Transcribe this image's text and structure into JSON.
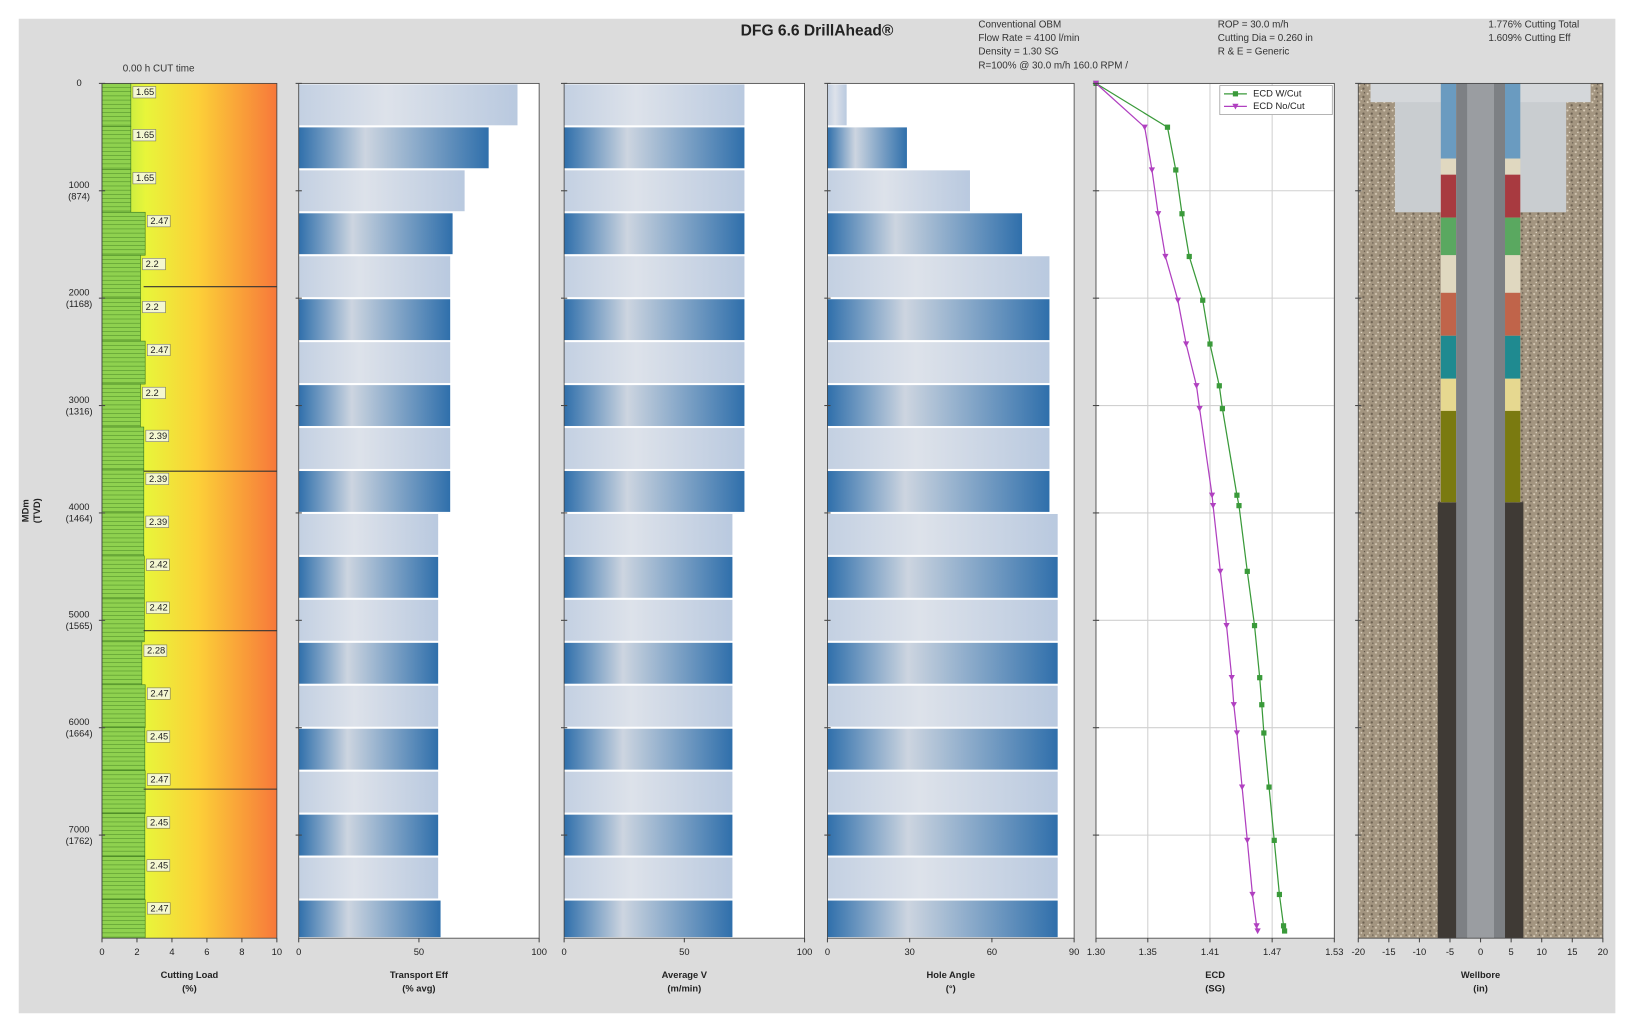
{
  "header": {
    "title": "DFG 6.6 DrillAhead®",
    "cut_time": "0.00 h CUT time",
    "info_mud": [
      "Conventional OBM",
      "Flow Rate = 4100 l/min",
      "Density = 1.30 SG",
      "R=100% @ 30.0 m/h 160.0 RPM /"
    ],
    "info_cutting": [
      "ROP = 30.0 m/h",
      "Cutting Dia = 0.260 in",
      "R & E = Generic"
    ],
    "info_total": [
      "1.776% Cutting Total",
      "1.609% Cutting Eff"
    ]
  },
  "depth_axis": {
    "label": "MDm",
    "sublabel": "(TVD)",
    "ylim": [
      0,
      7960
    ],
    "yticks": [
      0,
      1000,
      2000,
      3000,
      4000,
      5000,
      6000,
      7000
    ],
    "ytick_sublabels": [
      null,
      "(874)",
      "(1168)",
      "(1316)",
      "(1464)",
      "(1565)",
      "(1664)",
      "(1762)"
    ],
    "interval_tops": [
      0,
      400,
      800,
      1200,
      1600,
      2000,
      2400,
      2800,
      3200,
      3600,
      4000,
      4400,
      4800,
      5200,
      5600,
      6000,
      6400,
      6800,
      7200,
      7600
    ]
  },
  "chart_data": [
    {
      "type": "cutting",
      "xlabel": "Cutting Load",
      "xunit": "(%)",
      "xlim": [
        0,
        10
      ],
      "xticks": [
        0,
        2,
        4,
        6,
        8,
        10
      ],
      "color": "#8fd14f",
      "values": [
        1.65,
        1.65,
        1.65,
        2.47,
        2.2,
        2.2,
        2.47,
        2.2,
        2.39,
        2.39,
        2.39,
        2.42,
        2.42,
        2.28,
        2.47,
        2.45,
        2.47,
        2.45,
        2.45,
        2.47
      ]
    },
    {
      "type": "bar",
      "xlabel": "Transport Eff",
      "xunit": "(% avg)",
      "xlim": [
        0,
        100
      ],
      "xticks": [
        0,
        50,
        100
      ],
      "values": [
        91,
        79,
        69,
        64,
        63,
        63,
        63,
        63,
        63,
        63,
        58,
        58,
        58,
        58,
        58,
        58,
        58,
        58,
        58,
        59
      ]
    },
    {
      "type": "bar",
      "xlabel": "Average V",
      "xunit": "(m/min)",
      "xlim": [
        0,
        100
      ],
      "xticks": [
        0,
        50,
        100
      ],
      "values": [
        75,
        75,
        75,
        75,
        75,
        75,
        75,
        75,
        75,
        75,
        70,
        70,
        70,
        70,
        70,
        70,
        70,
        70,
        70,
        70
      ]
    },
    {
      "type": "bar",
      "xlabel": "Hole Angle",
      "xunit": "(°)",
      "xlim": [
        0,
        90
      ],
      "xticks": [
        0,
        30,
        60,
        90
      ],
      "values": [
        7,
        29,
        52,
        71,
        81,
        81,
        81,
        81,
        81,
        81,
        84,
        84,
        84,
        84,
        84,
        84,
        84,
        84,
        84,
        84
      ]
    },
    {
      "type": "line",
      "xlabel": "ECD",
      "xunit": "(SG)",
      "xlim": [
        1.3,
        1.53
      ],
      "xticks": [
        {
          "value": 1.3,
          "label": "1.30"
        },
        1.35,
        1.41,
        1.47,
        1.53
      ],
      "grid": true,
      "legend": "upper right",
      "depths": [
        0,
        408,
        806,
        1214,
        1612,
        2019,
        2427,
        2816,
        3029,
        3835,
        3932,
        4544,
        5049,
        5534,
        5786,
        6049,
        6553,
        7049,
        7553,
        7845,
        7893
      ],
      "series": [
        {
          "name": "ECD W/Cut",
          "color": "#3a9a3a",
          "marker": "square",
          "values": [
            1.3,
            1.369,
            1.377,
            1.383,
            1.39,
            1.403,
            1.41,
            1.419,
            1.422,
            1.436,
            1.438,
            1.446,
            1.453,
            1.458,
            1.46,
            1.462,
            1.467,
            1.472,
            1.477,
            1.481,
            1.482
          ]
        },
        {
          "name": "ECD No/Cut",
          "color": "#b040c0",
          "marker": "triangle",
          "values": [
            1.3,
            1.347,
            1.354,
            1.36,
            1.367,
            1.379,
            1.387,
            1.397,
            1.4,
            1.412,
            1.413,
            1.42,
            1.426,
            1.431,
            1.433,
            1.436,
            1.441,
            1.446,
            1.451,
            1.455,
            1.456
          ]
        }
      ]
    },
    {
      "type": "wellbore",
      "xlabel": "Wellbore",
      "xunit": "(in)",
      "xlim": [
        -20,
        20
      ],
      "xticks": [
        -20,
        -15,
        -10,
        -5,
        0,
        5,
        10,
        15,
        20
      ]
    }
  ]
}
